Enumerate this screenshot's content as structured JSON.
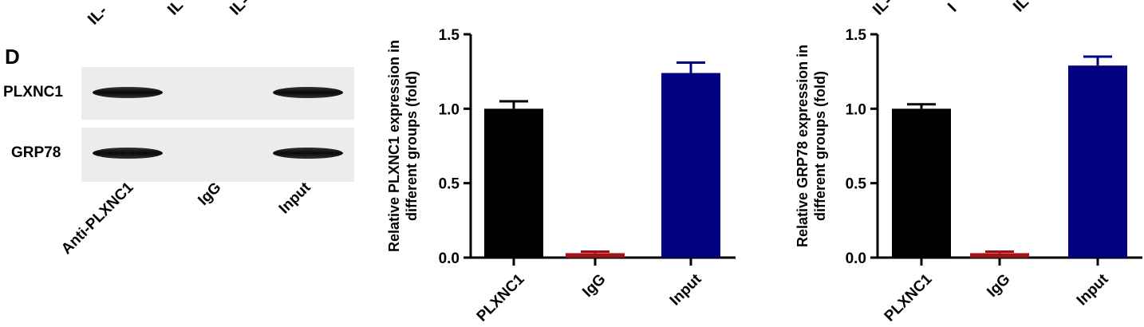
{
  "top_cut_labels": [
    "IL-",
    "IL",
    "IL-",
    "IL-",
    "I",
    "IL"
  ],
  "blot": {
    "panel_letter": "D",
    "rows": [
      "PLXNC1",
      "GRP78"
    ],
    "lanes": [
      "Anti-PLXNC1",
      "IgG",
      "Input"
    ],
    "band_presence": [
      [
        true,
        false,
        true
      ],
      [
        true,
        false,
        true
      ]
    ]
  },
  "chart_data": [
    {
      "type": "bar",
      "categories": [
        "Anti-PLXNC1",
        "IgG",
        "Input"
      ],
      "tick_labels": [
        "PLXNC1",
        "IgG",
        "Input"
      ],
      "values": [
        1.0,
        0.03,
        1.24
      ],
      "errors": [
        0.05,
        0.01,
        0.07
      ],
      "colors": [
        "#000000",
        "#a50f15",
        "#000080"
      ],
      "ylabel": [
        "Relative PLXNC1 expression in",
        "different groups (fold)"
      ],
      "ylim": [
        0,
        1.5
      ],
      "yticks": [
        "0.0",
        "0.5",
        "1.0",
        "1.5"
      ]
    },
    {
      "type": "bar",
      "categories": [
        "Anti-PLXNC1",
        "IgG",
        "Input"
      ],
      "tick_labels": [
        "PLXNC1",
        "IgG",
        "Input"
      ],
      "values": [
        1.0,
        0.03,
        1.29
      ],
      "errors": [
        0.03,
        0.01,
        0.06
      ],
      "colors": [
        "#000000",
        "#a50f15",
        "#000080"
      ],
      "ylabel": [
        "Relative GRP78 expression in",
        "different groups (fold)"
      ],
      "ylim": [
        0,
        1.5
      ],
      "yticks": [
        "0.0",
        "0.5",
        "1.0",
        "1.5"
      ]
    }
  ]
}
